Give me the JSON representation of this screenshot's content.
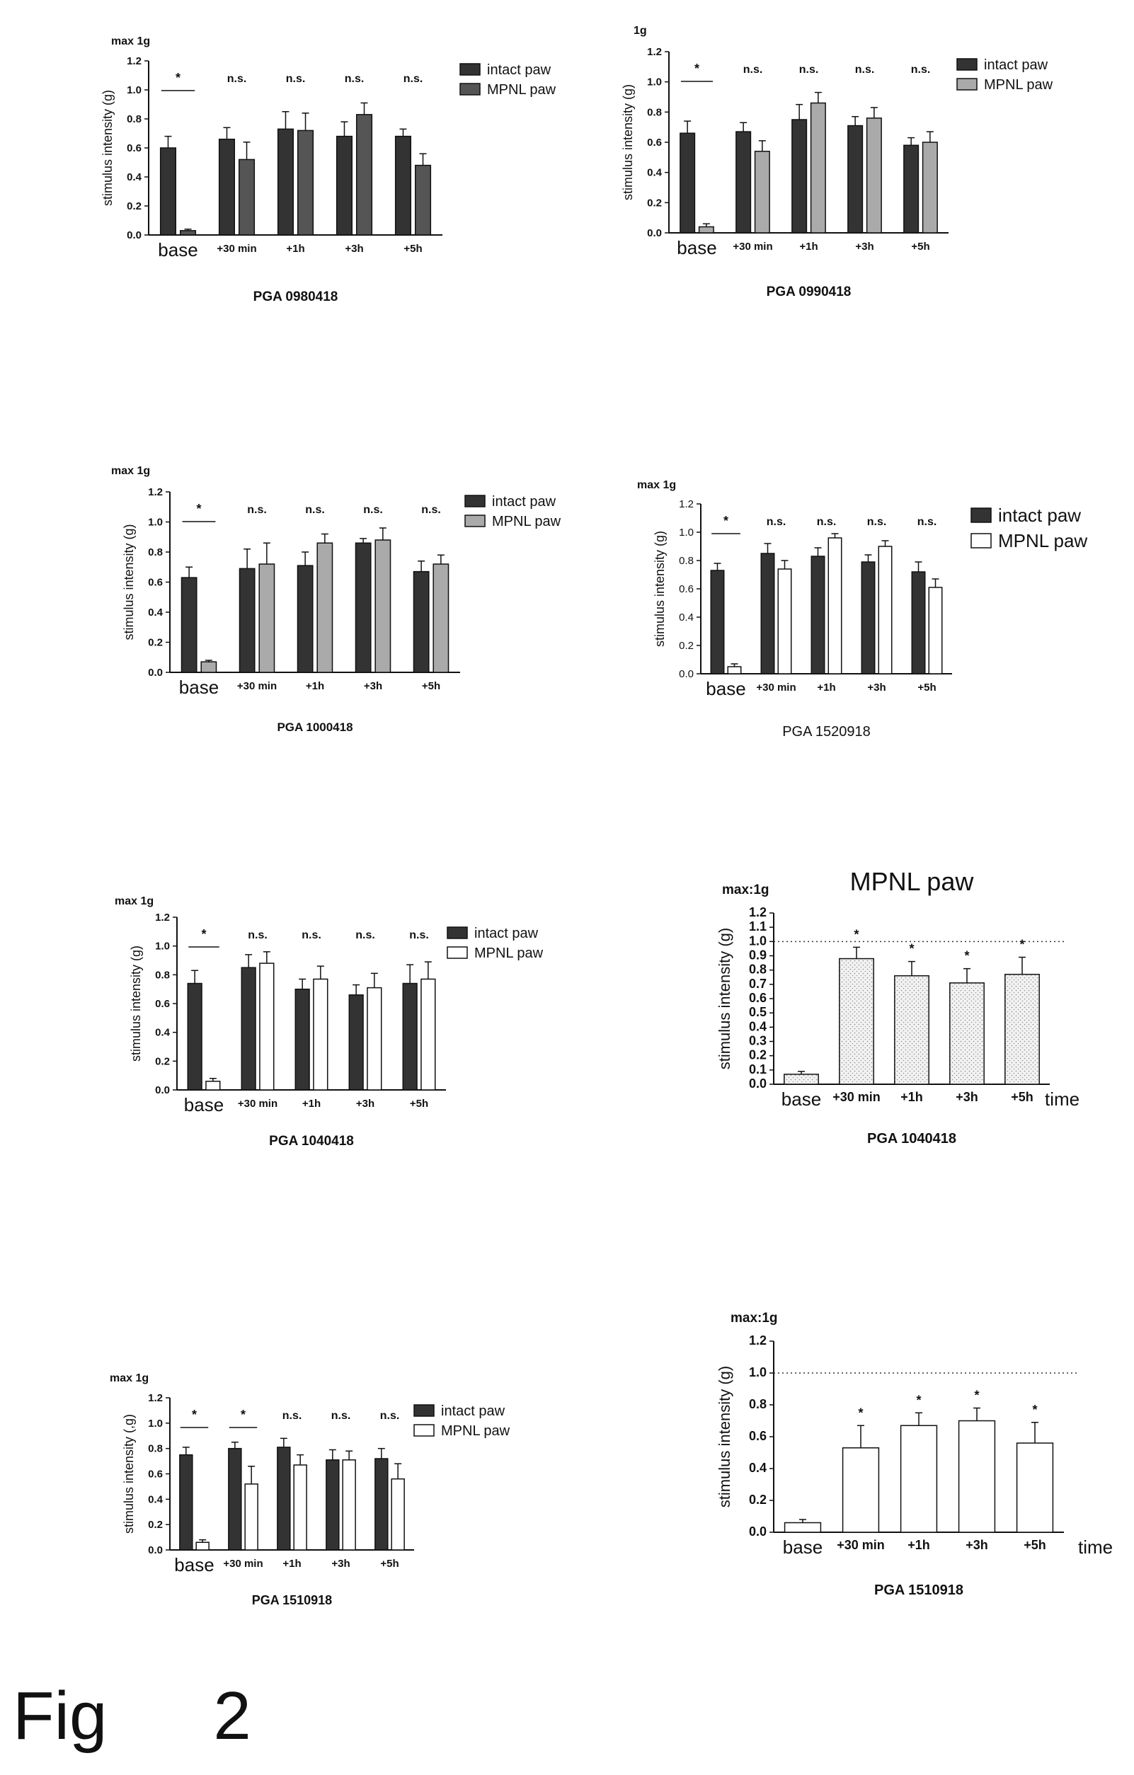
{
  "figure_label": "Fig",
  "figure_number": "2",
  "chart_data": [
    {
      "type": "bar",
      "corner_note": "max 1g",
      "title": "PGA 0980418",
      "ylabel": "stimulus intensity (g)",
      "ylim": [
        0,
        1.2
      ],
      "yticks": [
        "0.0",
        "0.2",
        "0.4",
        "0.6",
        "0.8",
        "1.0",
        "1.2"
      ],
      "categories": [
        "base",
        "+30 min",
        "+1h",
        "+3h",
        "+5h"
      ],
      "series": [
        {
          "name": "intact paw",
          "values": [
            0.6,
            0.66,
            0.73,
            0.68,
            0.68
          ],
          "errors": [
            0.08,
            0.08,
            0.12,
            0.1,
            0.05
          ],
          "fill": "#333333"
        },
        {
          "name": "MPNL paw",
          "values": [
            0.03,
            0.52,
            0.72,
            0.83,
            0.48
          ],
          "errors": [
            0.01,
            0.12,
            0.12,
            0.08,
            0.08
          ],
          "fill": "#555555"
        }
      ],
      "significance": [
        "*",
        "n.s.",
        "n.s.",
        "n.s.",
        "n.s."
      ],
      "legend_position": "top-right"
    },
    {
      "type": "bar",
      "corner_note": "1g",
      "title": "PGA 0990418",
      "ylabel": "stimulus intensity (g)",
      "ylim": [
        0,
        1.2
      ],
      "yticks": [
        "0.0",
        "0.2",
        "0.4",
        "0.6",
        "0.8",
        "1.0",
        "1.2"
      ],
      "categories": [
        "base",
        "+30 min",
        "+1h",
        "+3h",
        "+5h"
      ],
      "series": [
        {
          "name": "intact paw",
          "values": [
            0.66,
            0.67,
            0.75,
            0.71,
            0.58
          ],
          "errors": [
            0.08,
            0.06,
            0.1,
            0.06,
            0.05
          ],
          "fill": "#333333"
        },
        {
          "name": "MPNL paw",
          "values": [
            0.04,
            0.54,
            0.86,
            0.76,
            0.6
          ],
          "errors": [
            0.02,
            0.07,
            0.07,
            0.07,
            0.07
          ],
          "fill": "#aaaaaa"
        }
      ],
      "significance": [
        "*",
        "n.s.",
        "n.s.",
        "n.s.",
        "n.s."
      ],
      "legend_position": "top-right"
    },
    {
      "type": "bar",
      "corner_note": "max 1g",
      "title": "PGA 1000418",
      "ylabel": "stimulus intensity (g)",
      "ylim": [
        0,
        1.2
      ],
      "yticks": [
        "0.0",
        "0.2",
        "0.4",
        "0.6",
        "0.8",
        "1.0",
        "1.2"
      ],
      "categories": [
        "base",
        "+30 min",
        "+1h",
        "+3h",
        "+5h"
      ],
      "series": [
        {
          "name": "intact paw",
          "values": [
            0.63,
            0.69,
            0.71,
            0.86,
            0.67
          ],
          "errors": [
            0.07,
            0.13,
            0.09,
            0.03,
            0.07
          ],
          "fill": "#333333"
        },
        {
          "name": "MPNL paw",
          "values": [
            0.07,
            0.72,
            0.86,
            0.88,
            0.72
          ],
          "errors": [
            0.01,
            0.14,
            0.06,
            0.08,
            0.06
          ],
          "fill": "#aaaaaa"
        }
      ],
      "significance": [
        "*",
        "n.s.",
        "n.s.",
        "n.s.",
        "n.s."
      ],
      "legend_position": "top-right"
    },
    {
      "type": "bar",
      "corner_note": "max 1g",
      "title": "PGA 1520918",
      "ylabel": "stimulus intensity (g)",
      "ylim": [
        0,
        1.2
      ],
      "yticks": [
        "0.0",
        "0.2",
        "0.4",
        "0.6",
        "0.8",
        "1.0",
        "1.2"
      ],
      "categories": [
        "base",
        "+30 min",
        "+1h",
        "+3h",
        "+5h"
      ],
      "series": [
        {
          "name": "intact paw",
          "values": [
            0.73,
            0.85,
            0.83,
            0.79,
            0.72
          ],
          "errors": [
            0.05,
            0.07,
            0.06,
            0.05,
            0.07
          ],
          "fill": "#333333"
        },
        {
          "name": "MPNL paw",
          "values": [
            0.05,
            0.74,
            0.96,
            0.9,
            0.61
          ],
          "errors": [
            0.02,
            0.06,
            0.03,
            0.04,
            0.06
          ],
          "fill": "#ffffff"
        }
      ],
      "significance": [
        "*",
        "n.s.",
        "n.s.",
        "n.s.",
        "n.s."
      ],
      "legend_position": "top-right"
    },
    {
      "type": "bar",
      "corner_note": "max 1g",
      "title": "PGA 1040418",
      "ylabel": "stimulus intensity (g)",
      "ylim": [
        0,
        1.2
      ],
      "yticks": [
        "0.0",
        "0.2",
        "0.4",
        "0.6",
        "0.8",
        "1.0",
        "1.2"
      ],
      "categories": [
        "base",
        "+30 min",
        "+1h",
        "+3h",
        "+5h"
      ],
      "series": [
        {
          "name": "intact paw",
          "values": [
            0.74,
            0.85,
            0.7,
            0.66,
            0.74
          ],
          "errors": [
            0.09,
            0.09,
            0.07,
            0.07,
            0.13
          ],
          "fill": "#333333"
        },
        {
          "name": "MPNL paw",
          "values": [
            0.06,
            0.88,
            0.77,
            0.71,
            0.77
          ],
          "errors": [
            0.02,
            0.08,
            0.09,
            0.1,
            0.12
          ],
          "fill": "#ffffff"
        }
      ],
      "significance": [
        "*",
        "n.s.",
        "n.s.",
        "n.s.",
        "n.s."
      ],
      "legend_position": "top-right"
    },
    {
      "type": "bar",
      "corner_note": "max:1g",
      "title": "MPNL paw",
      "subtitle": "PGA 1040418",
      "ylabel": "stimulus intensity (g)",
      "xlabel": "time",
      "ylim": [
        0,
        1.2
      ],
      "yticks": [
        "0.0",
        "0.1",
        "0.2",
        "0.3",
        "0.4",
        "0.5",
        "0.6",
        "0.7",
        "0.8",
        "0.9",
        "1.0",
        "1.1",
        "1.2"
      ],
      "reference_line": 1.0,
      "categories": [
        "base",
        "+30 min",
        "+1h",
        "+3h",
        "+5h"
      ],
      "series": [
        {
          "name": "",
          "values": [
            0.07,
            0.88,
            0.76,
            0.71,
            0.77
          ],
          "errors": [
            0.02,
            0.08,
            0.1,
            0.1,
            0.12
          ],
          "fill": "#e8e8e8"
        }
      ],
      "significance": [
        "",
        "*",
        "*",
        "*",
        "*"
      ]
    },
    {
      "type": "bar",
      "corner_note": "max 1g",
      "title": "PGA 1510918",
      "ylabel": "stimulus intensity (,g)",
      "ylim": [
        0,
        1.2
      ],
      "yticks": [
        "0.0",
        "0.2",
        "0.4",
        "0.6",
        "0.8",
        "1.0",
        "1.2"
      ],
      "categories": [
        "base",
        "+30 min",
        "+1h",
        "+3h",
        "+5h"
      ],
      "series": [
        {
          "name": "intact paw",
          "values": [
            0.75,
            0.8,
            0.81,
            0.71,
            0.72
          ],
          "errors": [
            0.06,
            0.05,
            0.07,
            0.08,
            0.08
          ],
          "fill": "#333333"
        },
        {
          "name": "MPNL paw",
          "values": [
            0.06,
            0.52,
            0.67,
            0.71,
            0.56
          ],
          "errors": [
            0.02,
            0.14,
            0.08,
            0.07,
            0.12
          ],
          "fill": "#ffffff"
        }
      ],
      "significance": [
        "*",
        "*",
        "n.s.",
        "n.s.",
        "n.s."
      ],
      "legend_position": "top-right"
    },
    {
      "type": "bar",
      "corner_note": "max:1g",
      "title": "PGA 1510918",
      "ylabel": "stimulus intensity (g)",
      "xlabel": "time",
      "ylim": [
        0,
        1.2
      ],
      "yticks": [
        "0.0",
        "0.2",
        "0.4",
        "0.6",
        "0.8",
        "1.0",
        "1.2"
      ],
      "reference_line": 1.0,
      "categories": [
        "base",
        "+30 min",
        "+1h",
        "+3h",
        "+5h"
      ],
      "series": [
        {
          "name": "",
          "values": [
            0.06,
            0.53,
            0.67,
            0.7,
            0.56
          ],
          "errors": [
            0.02,
            0.14,
            0.08,
            0.08,
            0.13
          ],
          "fill": "#ffffff"
        }
      ],
      "significance": [
        "",
        "*",
        "*",
        "*",
        "*"
      ]
    }
  ]
}
